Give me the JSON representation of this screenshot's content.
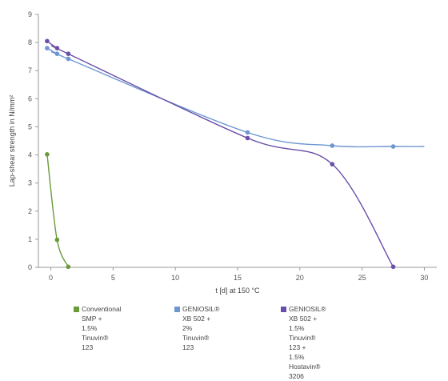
{
  "chart_data": {
    "type": "line",
    "xlabel": "t [d] at 150 °C",
    "ylabel": "Lap-shear strength in N/mm²",
    "xlim": [
      -1,
      31
    ],
    "ylim": [
      0,
      9
    ],
    "xticks": [
      0,
      5,
      10,
      15,
      20,
      25,
      30
    ],
    "yticks": [
      0,
      1,
      2,
      3,
      4,
      5,
      6,
      7,
      8,
      9
    ],
    "grid": false,
    "legend_position": "bottom",
    "series": [
      {
        "name": "Conventional SMP +\n1.5% Tinuvin® 123",
        "color": "#6b9a3a",
        "x": [
          -0.3,
          0.5,
          1.4
        ],
        "y": [
          4.02,
          0.98,
          0.02
        ]
      },
      {
        "name": "GENIOSIL® XB 502 +\n2% Tinuvin® 123",
        "color": "#6d96d2",
        "x": [
          -0.3,
          0.5,
          1.4,
          15.8,
          22.6,
          27.5,
          30
        ],
        "y": [
          7.8,
          7.6,
          7.42,
          4.8,
          4.33,
          4.3,
          4.3
        ]
      },
      {
        "name": "GENIOSIL® XB 502 + 1.5% Tinuvin® 123 +\n1.5% Hostavin® 3206",
        "color": "#6a4fa8",
        "x": [
          -0.3,
          0.5,
          1.4,
          15.8,
          22.6,
          27.5
        ],
        "y": [
          8.05,
          7.8,
          7.6,
          4.6,
          3.67,
          0.02
        ]
      }
    ]
  }
}
